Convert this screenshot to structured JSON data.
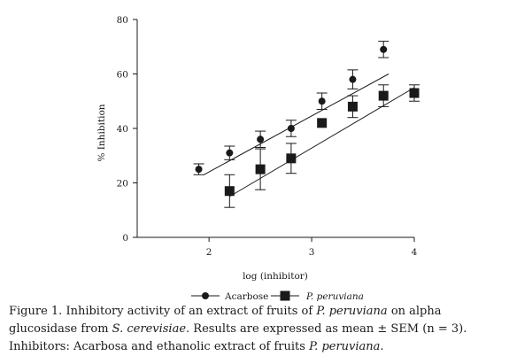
{
  "chart_data": {
    "type": "scatter",
    "xlabel": "log (inhibitor)",
    "ylabel": "% Inhibition",
    "xlim": [
      1.3,
      4.0
    ],
    "ylim": [
      0,
      80
    ],
    "x_ticks": [
      2,
      3,
      4
    ],
    "y_ticks": [
      0,
      20,
      40,
      60,
      80
    ],
    "grid": false,
    "legend_position": "bottom-center",
    "series": [
      {
        "name": "Acarbose",
        "marker": "circle",
        "color": "#1a1a1a",
        "x": [
          1.9,
          2.2,
          2.5,
          2.8,
          3.1,
          3.4,
          3.7
        ],
        "y": [
          25,
          31,
          36,
          40,
          50,
          58,
          69
        ],
        "error": [
          2,
          2.5,
          3,
          3,
          3,
          3.5,
          3
        ],
        "fit_line": {
          "x": [
            1.95,
            3.75
          ],
          "y": [
            23,
            60
          ]
        }
      },
      {
        "name": "P. peruviana",
        "marker": "square",
        "color": "#1a1a1a",
        "x": [
          2.2,
          2.5,
          2.8,
          3.1,
          3.4,
          3.7,
          4.0
        ],
        "y": [
          17,
          25,
          29,
          42,
          48,
          52,
          53
        ],
        "error": [
          6,
          7.5,
          5.5,
          0,
          4,
          4,
          3
        ],
        "fit_line": {
          "x": [
            2.2,
            4.0
          ],
          "y": [
            15,
            55
          ]
        }
      }
    ]
  },
  "caption": {
    "prefix": "Figure 1. Inhibitory activity of an extract of fruits of ",
    "species_1": "P. peruviana",
    "middle_1": " on alpha glucosidase from ",
    "species_2": "S. cerevisiae",
    "middle_2": ". Results are expressed as mean ± SEM (n = 3). Inhibitors: Acarbosa and ethanolic extract of fruits ",
    "species_3": "P. peruviana",
    "suffix": "."
  }
}
